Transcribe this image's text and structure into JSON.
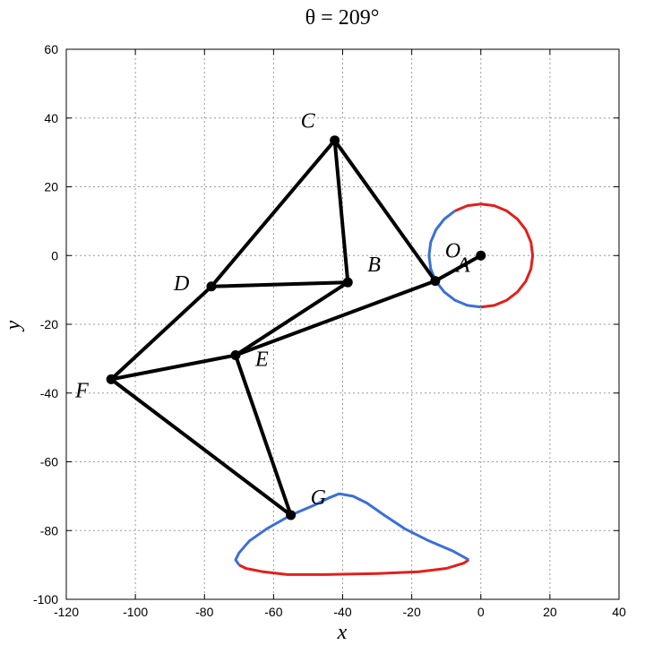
{
  "chart_data": {
    "type": "line",
    "title": "θ = 209°",
    "xlabel": "x",
    "ylabel": "y",
    "xlim": [
      -120,
      40
    ],
    "ylim": [
      -100,
      60
    ],
    "xticks": [
      -120,
      -100,
      -80,
      -60,
      -40,
      -20,
      0,
      20,
      40
    ],
    "yticks": [
      -100,
      -80,
      -60,
      -40,
      -20,
      0,
      20,
      40,
      60
    ],
    "grid": true,
    "points": [
      {
        "name": "O",
        "x": 0,
        "y": 0
      },
      {
        "name": "A",
        "x": -13.2,
        "y": -7.4
      },
      {
        "name": "B",
        "x": -38.5,
        "y": -7.8
      },
      {
        "name": "C",
        "x": -42.3,
        "y": 33.5
      },
      {
        "name": "D",
        "x": -78,
        "y": -9
      },
      {
        "name": "E",
        "x": -71,
        "y": -29
      },
      {
        "name": "F",
        "x": -107,
        "y": -36
      },
      {
        "name": "G",
        "x": -55,
        "y": -75.5
      }
    ],
    "links": [
      [
        "O",
        "A"
      ],
      [
        "A",
        "C"
      ],
      [
        "C",
        "B"
      ],
      [
        "C",
        "D"
      ],
      [
        "D",
        "B"
      ],
      [
        "A",
        "E"
      ],
      [
        "B",
        "E"
      ],
      [
        "D",
        "F"
      ],
      [
        "E",
        "F"
      ],
      [
        "E",
        "G"
      ],
      [
        "F",
        "G"
      ]
    ],
    "series": [
      {
        "color": "#e0201c",
        "segments": [
          [
            [
              -7.5,
              13
            ],
            [
              -3.9,
              14.5
            ],
            [
              0,
              15
            ],
            [
              3.9,
              14.5
            ],
            [
              7.5,
              13
            ],
            [
              10.6,
              10.6
            ],
            [
              13,
              7.5
            ],
            [
              14.5,
              3.9
            ],
            [
              15,
              0
            ],
            [
              14.5,
              -3.9
            ],
            [
              13,
              -7.5
            ],
            [
              10.6,
              -10.6
            ],
            [
              7.5,
              -13
            ],
            [
              3.9,
              -14.5
            ],
            [
              0,
              -15
            ]
          ],
          [
            [
              -70,
              -90
            ],
            [
              -68,
              -91
            ],
            [
              -63,
              -92
            ],
            [
              -56,
              -92.8
            ],
            [
              -45,
              -92.8
            ],
            [
              -30,
              -92.5
            ],
            [
              -18,
              -92
            ],
            [
              -10,
              -91
            ],
            [
              -5,
              -89.5
            ],
            [
              -3.5,
              -88.5
            ]
          ]
        ]
      },
      {
        "color": "#3a6fd8",
        "segments": [
          [
            [
              0,
              -15
            ],
            [
              -3.9,
              -14.5
            ],
            [
              -7.5,
              -13
            ],
            [
              -10.6,
              -10.6
            ],
            [
              -13,
              -7.5
            ],
            [
              -14.5,
              -3.9
            ],
            [
              -15,
              0
            ],
            [
              -14.5,
              3.9
            ],
            [
              -13,
              7.5
            ],
            [
              -10.6,
              10.6
            ],
            [
              -7.5,
              13
            ]
          ],
          [
            [
              -3.5,
              -88.5
            ],
            [
              -8,
              -86
            ],
            [
              -15,
              -83
            ],
            [
              -22,
              -79.5
            ],
            [
              -28,
              -75.5
            ],
            [
              -33,
              -72
            ],
            [
              -37,
              -70
            ],
            [
              -41,
              -69.3
            ],
            [
              -44,
              -70.5
            ],
            [
              -48,
              -72.5
            ],
            [
              -55,
              -75.5
            ],
            [
              -62,
              -79.5
            ],
            [
              -67,
              -83
            ],
            [
              -70,
              -86.5
            ],
            [
              -71,
              -88.5
            ],
            [
              -70,
              -90
            ]
          ]
        ]
      }
    ]
  }
}
